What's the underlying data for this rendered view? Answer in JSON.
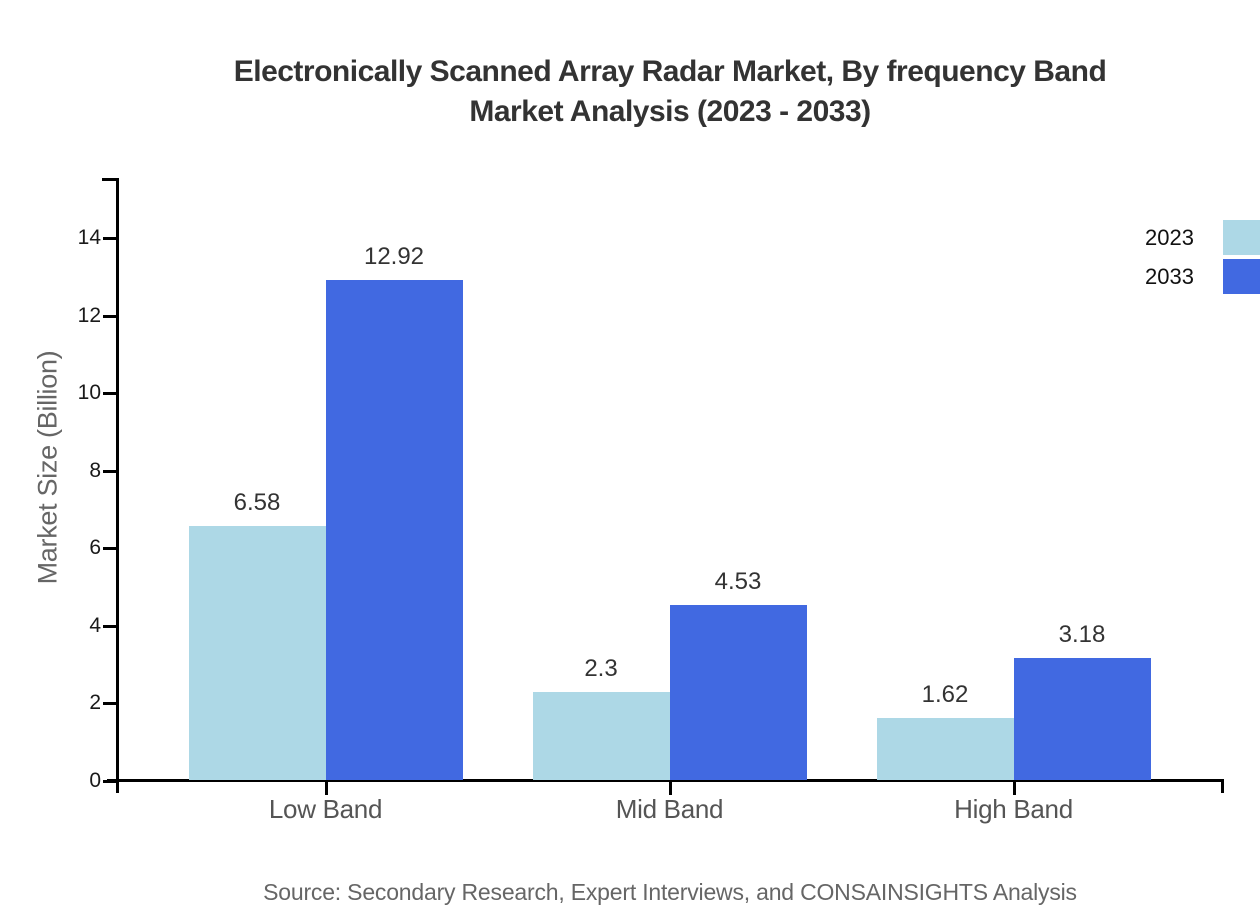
{
  "chart_data": {
    "type": "bar",
    "title": "Electronically Scanned Array Radar Market, By frequency Band Market Analysis (2023 - 2033)",
    "title_line1": "Electronically Scanned Array Radar Market, By frequency Band",
    "title_line2": "Market Analysis (2023 - 2033)",
    "categories": [
      "Low Band",
      "Mid Band",
      "High Band"
    ],
    "series": [
      {
        "name": "2023",
        "color": "#ADD8E6",
        "values": [
          6.58,
          2.3,
          1.62
        ]
      },
      {
        "name": "2033",
        "color": "#4169E1",
        "values": [
          12.92,
          4.53,
          3.18
        ]
      }
    ],
    "xlabel": "",
    "ylabel": "Market Size (Billion)",
    "yticks": [
      0,
      2,
      4,
      6,
      8,
      10,
      12,
      14
    ],
    "ylim": [
      0,
      15.5
    ],
    "grid": false,
    "legend_position": "top-right",
    "value_labels_shown": true,
    "source": "Source: Secondary Research, Expert Interviews, and CONSAINSIGHTS Analysis",
    "colors": {
      "series_2023": "#ADD8E6",
      "series_2033": "#4169E1",
      "title_text": "#333333",
      "tick_text": "#1a1a1a",
      "category_text": "#555555",
      "muted_text": "#666666",
      "axis_line": "#000000",
      "background": "#ffffff"
    }
  }
}
